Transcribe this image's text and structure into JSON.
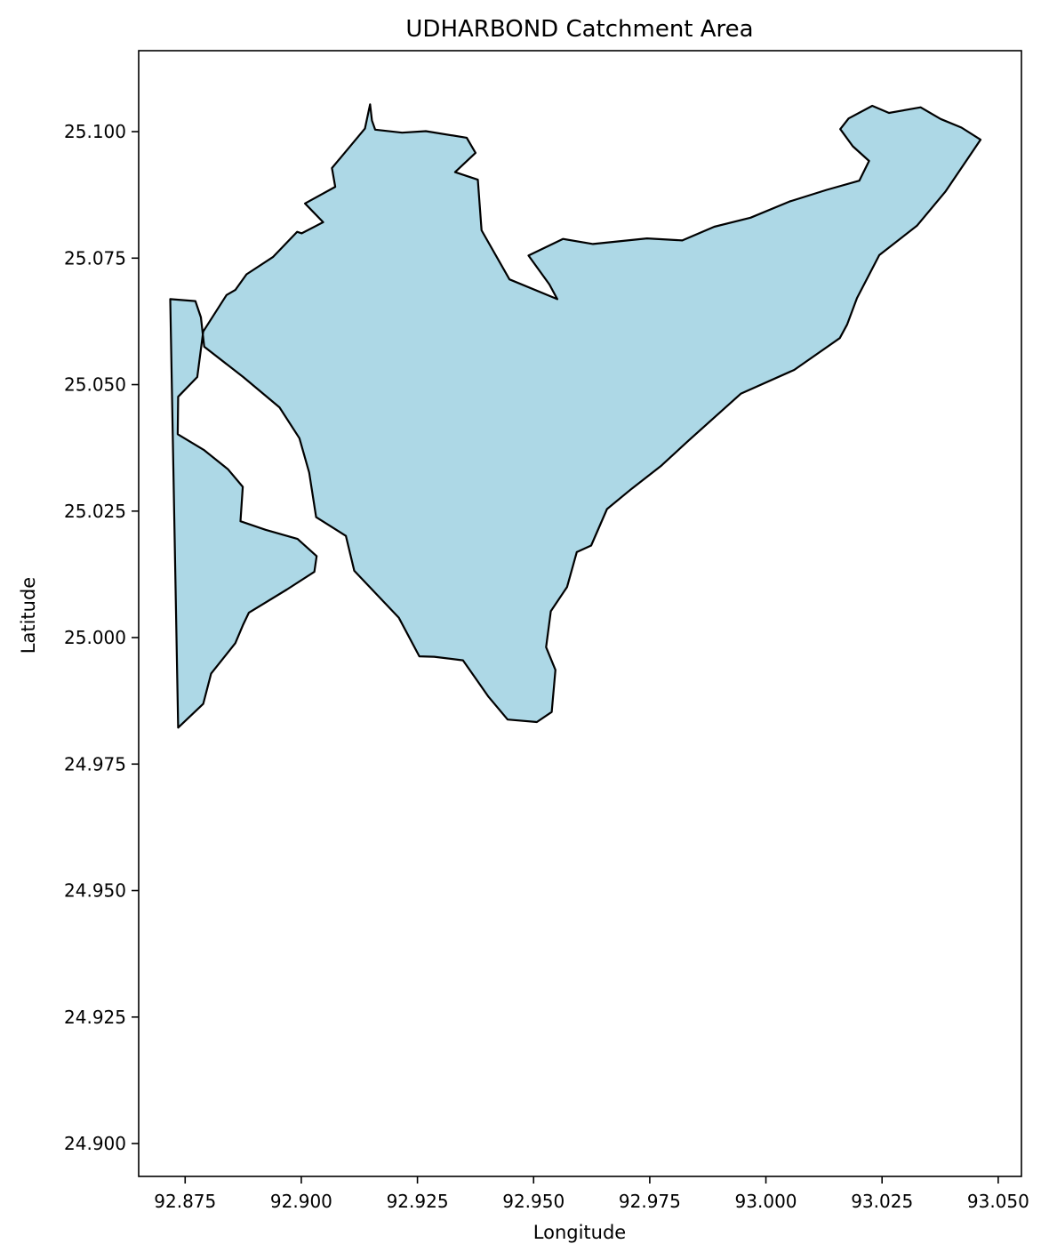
{
  "chart_data": {
    "type": "area",
    "title": "UDHARBOND Catchment Area",
    "xlabel": "Longitude",
    "ylabel": "Latitude",
    "xlim": [
      92.865,
      93.055
    ],
    "ylim": [
      24.8935,
      25.116
    ],
    "x_ticks": [
      "92.875",
      "92.900",
      "92.925",
      "92.950",
      "92.975",
      "93.000",
      "93.025",
      "93.050"
    ],
    "y_ticks": [
      "24.900",
      "24.925",
      "24.950",
      "24.975",
      "25.000",
      "25.025",
      "25.050",
      "25.075",
      "25.100"
    ],
    "grid": false,
    "series": [
      {
        "fill": "#add8e6",
        "edge": "#000000",
        "x": [
          92.8718,
          92.8772,
          92.8784,
          92.8791,
          92.8875,
          92.8953,
          92.8996,
          92.9017,
          92.9032,
          92.9096,
          92.9114,
          92.921,
          92.9254,
          92.9286,
          92.9348,
          92.9403,
          92.9444,
          92.9507,
          92.9539,
          92.9547,
          92.9527,
          92.9537,
          92.9572,
          92.9593,
          92.9624,
          92.9658,
          92.9711,
          92.9775,
          92.9833,
          92.9946,
          93.0061,
          93.0159,
          93.0175,
          93.0196,
          93.0244,
          93.0325,
          93.0386,
          93.0462,
          93.0421,
          93.0376,
          93.0333,
          93.0265,
          93.0229,
          93.0178,
          93.016,
          93.0187,
          93.0222,
          93.0201,
          93.0131,
          93.0051,
          92.9967,
          92.9889,
          92.982,
          92.9744,
          92.9628,
          92.9563,
          92.9489,
          92.9534,
          92.9551,
          92.9448,
          92.9388,
          92.938,
          92.9331,
          92.9375,
          92.9356,
          92.9268,
          92.9217,
          92.9159,
          92.9152,
          92.9148,
          92.9137,
          92.9066,
          92.9073,
          92.9008,
          92.9047,
          92.9001,
          92.8991,
          92.8939,
          92.8882,
          92.8858,
          92.8839,
          92.8789,
          92.8776,
          92.8735,
          92.8734,
          92.879,
          92.8842,
          92.8874,
          92.8869,
          92.8923,
          92.8992,
          92.9033,
          92.9028,
          92.8969,
          92.8887,
          92.8874,
          92.8858,
          92.8806,
          92.8789,
          92.8735,
          92.8718
        ],
        "y": [
          25.0669,
          25.0665,
          25.0633,
          25.0575,
          25.0515,
          25.0455,
          25.0394,
          25.0326,
          25.0238,
          25.0201,
          25.0132,
          25.0039,
          24.9963,
          24.9962,
          24.9955,
          24.9883,
          24.9838,
          24.9833,
          24.9853,
          24.9936,
          24.9981,
          25.0052,
          25.01,
          25.0169,
          25.0182,
          25.0254,
          25.0294,
          25.034,
          25.0389,
          25.0482,
          25.0529,
          25.0592,
          25.0619,
          25.0671,
          25.0756,
          25.0814,
          25.0881,
          25.0984,
          25.1008,
          25.1025,
          25.1048,
          25.1037,
          25.1051,
          25.1026,
          25.1005,
          25.0971,
          25.0942,
          25.0903,
          25.0885,
          25.0862,
          25.083,
          25.0812,
          25.0785,
          25.0789,
          25.0778,
          25.0788,
          25.0755,
          25.0698,
          25.0669,
          25.0708,
          25.0805,
          25.0905,
          25.092,
          25.0958,
          25.0988,
          25.1001,
          25.0998,
          25.1004,
          25.1022,
          25.1054,
          25.1006,
          25.0928,
          25.0891,
          25.0858,
          25.0821,
          25.0799,
          25.0802,
          25.0752,
          25.0718,
          25.0687,
          25.0677,
          25.0605,
          25.0515,
          25.0476,
          25.0402,
          25.0371,
          25.0333,
          25.0298,
          25.023,
          25.0213,
          25.0195,
          25.0161,
          25.013,
          25.0095,
          25.0049,
          25.0024,
          24.9989,
          24.9929,
          24.9869,
          24.9822,
          25.0669
        ]
      }
    ]
  }
}
